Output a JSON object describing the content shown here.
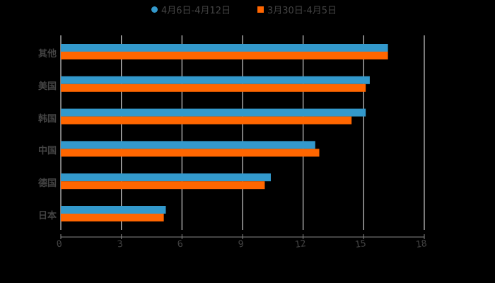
{
  "chart_data": {
    "type": "bar",
    "orientation": "horizontal",
    "title": "",
    "xlabel": "",
    "ylabel": "",
    "categories": [
      "其他",
      "美国",
      "韩国",
      "中国",
      "德国",
      "日本"
    ],
    "series": [
      {
        "name": "4月6日-4月12日",
        "color": "#3399cc",
        "values": [
          16.2,
          15.3,
          15.1,
          12.6,
          10.4,
          5.2
        ]
      },
      {
        "name": "3月30日-4月5日",
        "color": "#ff6600",
        "values": [
          16.2,
          15.1,
          14.4,
          12.8,
          10.1,
          5.1
        ]
      }
    ],
    "xlim": [
      0,
      18
    ],
    "xticks": [
      "0",
      "3",
      "6",
      "9",
      "12",
      "15",
      "18"
    ],
    "grid": "vertical",
    "legend_position": "top"
  },
  "legend": {
    "items": [
      {
        "label": "4月6日-4月12日",
        "color": "#3399cc",
        "marker": "circle"
      },
      {
        "label": "3月30日-4月5日",
        "color": "#ff6600",
        "marker": "square"
      }
    ]
  }
}
